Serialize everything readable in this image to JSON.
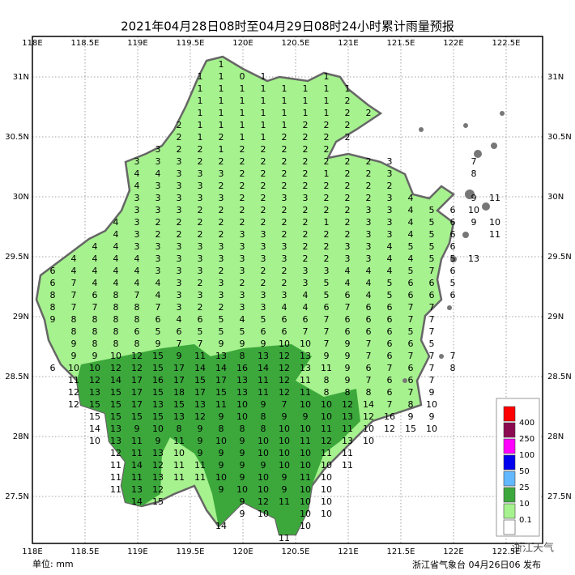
{
  "title": "2021年04月28日08时至04月29日08时24小时累计雨量预报",
  "x_ticks": [
    "118E",
    "118.5E",
    "119E",
    "119.5E",
    "120E",
    "120.5E",
    "121E",
    "121.5E",
    "122E",
    "122.5E"
  ],
  "y_ticks": [
    "31N",
    "30.5N",
    "30N",
    "29.5N",
    "29N",
    "28.5N",
    "28N",
    "27.5N"
  ],
  "legend": [
    {
      "label": "400",
      "color": "#ff0000"
    },
    {
      "label": "250",
      "color": "#8b0a50"
    },
    {
      "label": "100",
      "color": "#ff00ff"
    },
    {
      "label": "50",
      "color": "#0000ee"
    },
    {
      "label": "25",
      "color": "#62b8ff"
    },
    {
      "label": "10",
      "color": "#3ca83c"
    },
    {
      "label": "0.1",
      "color": "#a6f28e"
    },
    {
      "label": null,
      "color": "#ffffff"
    }
  ],
  "grid_rows": [
    [
      null,
      null,
      null,
      null,
      null,
      null,
      null,
      null,
      1,
      null,
      null,
      null,
      null,
      null,
      null,
      null,
      null,
      null,
      null,
      null,
      null,
      null
    ],
    [
      null,
      null,
      null,
      null,
      null,
      null,
      null,
      1,
      1,
      0,
      1,
      null,
      null,
      1,
      null,
      null,
      null,
      null,
      null,
      null,
      null,
      null
    ],
    [
      null,
      null,
      null,
      null,
      null,
      null,
      null,
      1,
      1,
      1,
      1,
      1,
      1,
      1,
      1,
      null,
      null,
      null,
      null,
      null,
      null,
      null
    ],
    [
      null,
      null,
      null,
      null,
      null,
      null,
      null,
      1,
      1,
      1,
      1,
      1,
      1,
      1,
      2,
      null,
      null,
      null,
      null,
      null,
      null,
      null
    ],
    [
      null,
      null,
      null,
      null,
      null,
      null,
      null,
      1,
      1,
      1,
      1,
      1,
      1,
      1,
      2,
      2,
      null,
      null,
      null,
      null,
      null,
      null
    ],
    [
      null,
      null,
      null,
      null,
      null,
      null,
      2,
      1,
      1,
      1,
      1,
      1,
      2,
      2,
      2,
      null,
      null,
      null,
      null,
      null,
      null,
      null
    ],
    [
      null,
      null,
      null,
      null,
      null,
      null,
      2,
      1,
      2,
      1,
      1,
      2,
      2,
      2,
      2,
      null,
      null,
      null,
      null,
      null,
      null,
      null
    ],
    [
      null,
      null,
      null,
      null,
      null,
      3,
      2,
      2,
      1,
      2,
      2,
      2,
      2,
      2,
      null,
      null,
      null,
      null,
      null,
      null,
      null,
      null
    ],
    [
      null,
      null,
      null,
      null,
      3,
      3,
      3,
      2,
      2,
      2,
      2,
      2,
      2,
      2,
      2,
      2,
      3,
      null,
      null,
      null,
      7,
      null
    ],
    [
      null,
      null,
      null,
      null,
      4,
      4,
      3,
      3,
      3,
      2,
      2,
      2,
      2,
      1,
      2,
      2,
      3,
      null,
      null,
      null,
      8,
      null
    ],
    [
      null,
      null,
      null,
      null,
      4,
      3,
      3,
      3,
      2,
      2,
      2,
      2,
      2,
      2,
      2,
      2,
      2,
      null,
      null,
      null,
      null,
      null
    ],
    [
      null,
      null,
      null,
      null,
      3,
      3,
      3,
      3,
      3,
      2,
      2,
      3,
      3,
      2,
      2,
      2,
      3,
      4,
      null,
      null,
      9,
      11
    ],
    [
      null,
      null,
      null,
      null,
      3,
      3,
      3,
      2,
      2,
      2,
      2,
      2,
      2,
      2,
      2,
      3,
      3,
      4,
      5,
      6,
      10,
      null
    ],
    [
      null,
      null,
      null,
      4,
      3,
      2,
      2,
      2,
      2,
      2,
      2,
      2,
      2,
      1,
      2,
      3,
      3,
      4,
      5,
      6,
      9,
      10
    ],
    [
      null,
      null,
      null,
      4,
      3,
      2,
      2,
      2,
      2,
      3,
      3,
      2,
      2,
      2,
      2,
      3,
      3,
      4,
      5,
      6,
      null,
      11
    ],
    [
      null,
      null,
      4,
      4,
      3,
      3,
      3,
      3,
      3,
      3,
      3,
      3,
      2,
      2,
      3,
      3,
      4,
      5,
      5,
      6,
      null,
      null
    ],
    [
      null,
      4,
      4,
      4,
      4,
      3,
      3,
      3,
      3,
      3,
      3,
      3,
      2,
      2,
      3,
      3,
      4,
      4,
      5,
      5,
      13,
      null
    ],
    [
      6,
      4,
      4,
      4,
      4,
      3,
      3,
      3,
      2,
      3,
      2,
      2,
      3,
      3,
      4,
      4,
      4,
      5,
      7,
      6,
      null,
      null
    ],
    [
      6,
      7,
      4,
      4,
      4,
      4,
      3,
      2,
      3,
      2,
      2,
      2,
      3,
      5,
      4,
      4,
      5,
      6,
      6,
      5,
      null,
      null
    ],
    [
      8,
      7,
      6,
      8,
      7,
      4,
      3,
      3,
      3,
      3,
      3,
      3,
      4,
      5,
      6,
      4,
      5,
      6,
      6,
      6,
      null,
      null
    ],
    [
      8,
      7,
      7,
      8,
      8,
      7,
      3,
      2,
      2,
      3,
      3,
      4,
      4,
      6,
      7,
      6,
      6,
      7,
      7,
      null,
      null,
      null
    ],
    [
      9,
      8,
      8,
      8,
      8,
      6,
      4,
      6,
      5,
      4,
      5,
      6,
      6,
      7,
      6,
      6,
      6,
      7,
      7,
      null,
      null,
      null
    ],
    [
      null,
      8,
      8,
      8,
      6,
      5,
      6,
      5,
      5,
      5,
      6,
      6,
      7,
      7,
      6,
      6,
      6,
      5,
      7,
      null,
      null,
      null
    ],
    [
      null,
      9,
      8,
      8,
      8,
      9,
      7,
      7,
      9,
      9,
      9,
      10,
      10,
      7,
      9,
      7,
      6,
      6,
      5,
      null,
      null,
      null
    ],
    [
      null,
      9,
      9,
      10,
      12,
      15,
      9,
      11,
      13,
      8,
      13,
      12,
      13,
      9,
      9,
      7,
      6,
      7,
      7,
      7,
      null,
      null
    ],
    [
      6,
      10,
      10,
      12,
      12,
      15,
      17,
      14,
      14,
      16,
      14,
      12,
      13,
      11,
      9,
      6,
      7,
      6,
      7,
      8,
      null,
      null
    ],
    [
      null,
      11,
      12,
      14,
      17,
      16,
      17,
      15,
      17,
      13,
      11,
      12,
      11,
      8,
      9,
      7,
      6,
      6,
      7,
      null,
      null,
      null
    ],
    [
      null,
      12,
      13,
      15,
      17,
      15,
      18,
      17,
      15,
      13,
      11,
      12,
      11,
      8,
      8,
      8,
      6,
      7,
      9,
      null,
      null,
      null
    ],
    [
      null,
      12,
      15,
      15,
      17,
      13,
      15,
      13,
      11,
      10,
      9,
      7,
      10,
      10,
      12,
      14,
      7,
      8,
      10,
      null,
      null,
      null
    ],
    [
      null,
      null,
      15,
      15,
      15,
      15,
      13,
      12,
      9,
      10,
      8,
      9,
      9,
      10,
      13,
      12,
      16,
      9,
      9,
      null,
      null,
      null
    ],
    [
      null,
      null,
      14,
      13,
      9,
      10,
      8,
      9,
      8,
      8,
      8,
      10,
      10,
      11,
      11,
      10,
      12,
      15,
      10,
      null,
      null,
      null
    ],
    [
      null,
      null,
      10,
      13,
      11,
      9,
      11,
      9,
      10,
      9,
      10,
      10,
      11,
      12,
      13,
      10,
      null,
      null,
      null,
      null,
      null,
      null
    ],
    [
      null,
      null,
      null,
      12,
      11,
      13,
      10,
      9,
      9,
      9,
      10,
      10,
      10,
      11,
      11,
      null,
      null,
      null,
      null,
      null,
      null,
      null
    ],
    [
      null,
      null,
      null,
      11,
      14,
      12,
      11,
      11,
      9,
      9,
      9,
      10,
      10,
      10,
      11,
      null,
      null,
      null,
      null,
      null,
      null,
      null
    ],
    [
      null,
      null,
      null,
      11,
      11,
      13,
      11,
      11,
      10,
      9,
      10,
      9,
      11,
      10,
      null,
      null,
      null,
      null,
      null,
      null,
      null,
      null
    ],
    [
      null,
      null,
      null,
      11,
      13,
      12,
      null,
      null,
      9,
      10,
      10,
      9,
      10,
      10,
      null,
      null,
      null,
      null,
      null,
      null,
      null,
      null
    ],
    [
      null,
      null,
      null,
      null,
      14,
      15,
      null,
      null,
      null,
      9,
      12,
      11,
      10,
      10,
      null,
      null,
      null,
      null,
      null,
      null,
      null,
      null
    ],
    [
      null,
      null,
      null,
      null,
      null,
      null,
      null,
      null,
      null,
      9,
      10,
      null,
      10,
      10,
      null,
      null,
      null,
      null,
      null,
      null,
      null,
      null
    ],
    [
      null,
      null,
      null,
      null,
      null,
      null,
      null,
      null,
      14,
      null,
      null,
      null,
      10,
      null,
      null,
      null,
      null,
      null,
      null,
      null,
      null,
      null
    ],
    [
      null,
      null,
      null,
      null,
      null,
      null,
      null,
      null,
      null,
      null,
      null,
      11,
      null,
      null,
      null,
      null,
      null,
      null,
      null,
      null,
      null,
      null
    ]
  ],
  "unit": "单位: mm",
  "issuer": "浙江省气象台 04月26日06 发布",
  "watermark": "浙江天气"
}
